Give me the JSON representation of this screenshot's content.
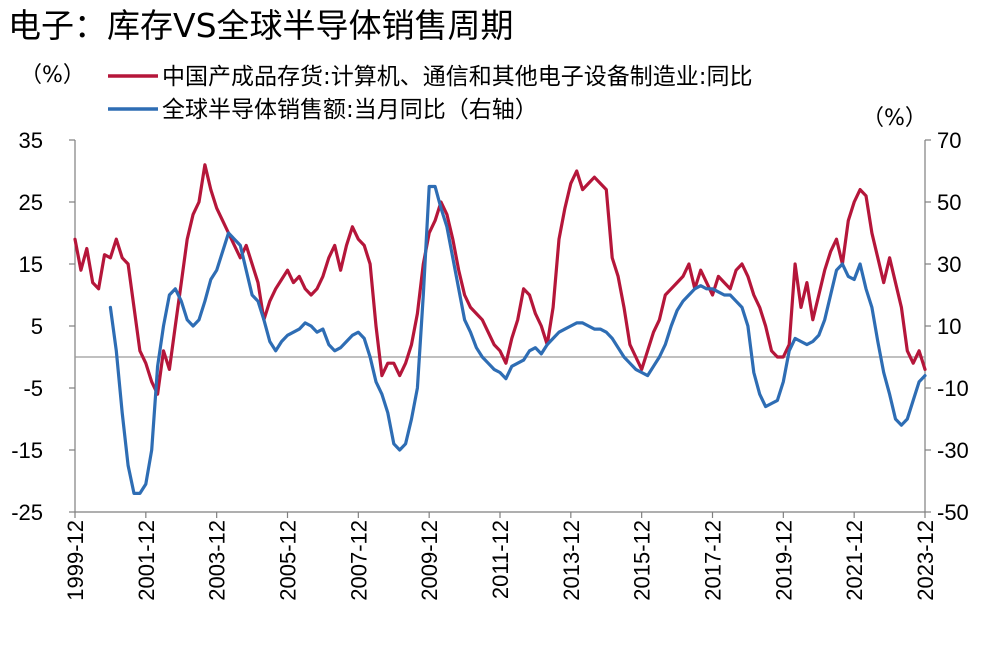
{
  "chart_data": {
    "type": "line",
    "title": "电子：库存VS全球半导体销售周期",
    "left_unit": "（%）",
    "right_unit": "（%）",
    "y_left": {
      "ylim": [
        -25,
        35
      ],
      "ticks": [
        35,
        25,
        15,
        5,
        -5,
        -15,
        -25
      ]
    },
    "y_right": {
      "ylim": [
        -50,
        70
      ],
      "ticks": [
        70,
        50,
        30,
        10,
        -10,
        -30,
        -50
      ]
    },
    "x_ticks": [
      "1999-12",
      "2001-12",
      "2003-12",
      "2005-12",
      "2007-12",
      "2009-12",
      "2011-12",
      "2013-12",
      "2015-12",
      "2017-12",
      "2019-12",
      "2021-12",
      "2023-12"
    ],
    "x_range": [
      "1999-12",
      "2023-12"
    ],
    "legend_placement": "top-left",
    "reference_line_right_axis": 0,
    "series": [
      {
        "name": "中国产成品存货:计算机、通信和其他电子设备制造业:同比",
        "axis": "left",
        "color": "#b5163a",
        "points": [
          [
            "1999-12",
            19
          ],
          [
            "2000-02",
            14
          ],
          [
            "2000-04",
            17.5
          ],
          [
            "2000-06",
            12
          ],
          [
            "2000-08",
            11
          ],
          [
            "2000-10",
            16.5
          ],
          [
            "2000-12",
            16
          ],
          [
            "2001-02",
            19
          ],
          [
            "2001-04",
            16
          ],
          [
            "2001-06",
            15
          ],
          [
            "2001-08",
            8
          ],
          [
            "2001-10",
            1
          ],
          [
            "2001-12",
            -1
          ],
          [
            "2002-02",
            -4
          ],
          [
            "2002-04",
            -6
          ],
          [
            "2002-06",
            1
          ],
          [
            "2002-08",
            -2
          ],
          [
            "2002-10",
            5
          ],
          [
            "2002-12",
            12
          ],
          [
            "2003-02",
            19
          ],
          [
            "2003-04",
            23
          ],
          [
            "2003-06",
            25
          ],
          [
            "2003-08",
            31
          ],
          [
            "2003-10",
            27
          ],
          [
            "2003-12",
            24
          ],
          [
            "2004-02",
            22
          ],
          [
            "2004-04",
            20
          ],
          [
            "2004-06",
            18
          ],
          [
            "2004-08",
            16
          ],
          [
            "2004-10",
            18
          ],
          [
            "2004-12",
            15
          ],
          [
            "2005-02",
            12
          ],
          [
            "2005-04",
            6
          ],
          [
            "2005-06",
            9
          ],
          [
            "2005-08",
            11
          ],
          [
            "2005-10",
            12.5
          ],
          [
            "2005-12",
            14
          ],
          [
            "2006-02",
            12
          ],
          [
            "2006-04",
            13
          ],
          [
            "2006-06",
            11
          ],
          [
            "2006-08",
            10
          ],
          [
            "2006-10",
            11
          ],
          [
            "2006-12",
            13
          ],
          [
            "2007-02",
            16
          ],
          [
            "2007-04",
            18
          ],
          [
            "2007-06",
            14
          ],
          [
            "2007-08",
            18
          ],
          [
            "2007-10",
            21
          ],
          [
            "2007-12",
            19
          ],
          [
            "2008-02",
            18
          ],
          [
            "2008-04",
            15
          ],
          [
            "2008-06",
            5
          ],
          [
            "2008-08",
            -3
          ],
          [
            "2008-10",
            -1
          ],
          [
            "2008-12",
            -1
          ],
          [
            "2009-02",
            -3
          ],
          [
            "2009-04",
            -1
          ],
          [
            "2009-06",
            2
          ],
          [
            "2009-08",
            7
          ],
          [
            "2009-10",
            15
          ],
          [
            "2009-12",
            20
          ],
          [
            "2010-02",
            22
          ],
          [
            "2010-04",
            25
          ],
          [
            "2010-06",
            23
          ],
          [
            "2010-08",
            19
          ],
          [
            "2010-10",
            14
          ],
          [
            "2010-12",
            10
          ],
          [
            "2011-02",
            8
          ],
          [
            "2011-04",
            7
          ],
          [
            "2011-06",
            6
          ],
          [
            "2011-08",
            4
          ],
          [
            "2011-10",
            2
          ],
          [
            "2011-12",
            1
          ],
          [
            "2012-02",
            -1
          ],
          [
            "2012-04",
            3
          ],
          [
            "2012-06",
            6
          ],
          [
            "2012-08",
            11
          ],
          [
            "2012-10",
            10
          ],
          [
            "2012-12",
            7
          ],
          [
            "2013-02",
            5
          ],
          [
            "2013-04",
            2
          ],
          [
            "2013-06",
            8
          ],
          [
            "2013-08",
            19
          ],
          [
            "2013-10",
            24
          ],
          [
            "2013-12",
            28
          ],
          [
            "2014-02",
            30
          ],
          [
            "2014-04",
            27
          ],
          [
            "2014-06",
            28
          ],
          [
            "2014-08",
            29
          ],
          [
            "2014-10",
            28
          ],
          [
            "2014-12",
            27
          ],
          [
            "2015-02",
            16
          ],
          [
            "2015-04",
            13
          ],
          [
            "2015-06",
            8
          ],
          [
            "2015-08",
            2
          ],
          [
            "2015-10",
            0
          ],
          [
            "2015-12",
            -2
          ],
          [
            "2016-02",
            1
          ],
          [
            "2016-04",
            4
          ],
          [
            "2016-06",
            6
          ],
          [
            "2016-08",
            10
          ],
          [
            "2016-10",
            11
          ],
          [
            "2016-12",
            12
          ],
          [
            "2017-02",
            13
          ],
          [
            "2017-04",
            15
          ],
          [
            "2017-06",
            11
          ],
          [
            "2017-08",
            14
          ],
          [
            "2017-10",
            12
          ],
          [
            "2017-12",
            10
          ],
          [
            "2018-02",
            13
          ],
          [
            "2018-04",
            12
          ],
          [
            "2018-06",
            11
          ],
          [
            "2018-08",
            14
          ],
          [
            "2018-10",
            15
          ],
          [
            "2018-12",
            13
          ],
          [
            "2019-02",
            10
          ],
          [
            "2019-04",
            8
          ],
          [
            "2019-06",
            5
          ],
          [
            "2019-08",
            1
          ],
          [
            "2019-10",
            0
          ],
          [
            "2019-12",
            0
          ],
          [
            "2020-02",
            2
          ],
          [
            "2020-04",
            15
          ],
          [
            "2020-06",
            8
          ],
          [
            "2020-08",
            12
          ],
          [
            "2020-10",
            6
          ],
          [
            "2020-12",
            10
          ],
          [
            "2021-02",
            14
          ],
          [
            "2021-04",
            17
          ],
          [
            "2021-06",
            19
          ],
          [
            "2021-08",
            15
          ],
          [
            "2021-10",
            22
          ],
          [
            "2021-12",
            25
          ],
          [
            "2022-02",
            27
          ],
          [
            "2022-04",
            26
          ],
          [
            "2022-06",
            20
          ],
          [
            "2022-08",
            16
          ],
          [
            "2022-10",
            12
          ],
          [
            "2022-12",
            16
          ],
          [
            "2023-02",
            12
          ],
          [
            "2023-04",
            8
          ],
          [
            "2023-06",
            1
          ],
          [
            "2023-08",
            -1
          ],
          [
            "2023-10",
            1
          ],
          [
            "2023-12",
            -2
          ]
        ]
      },
      {
        "name": "全球半导体销售额:当月同比（右轴）",
        "axis": "right",
        "color": "#2e6db4",
        "points": [
          [
            "2000-12",
            16
          ],
          [
            "2001-02",
            2
          ],
          [
            "2001-04",
            -18
          ],
          [
            "2001-06",
            -35
          ],
          [
            "2001-08",
            -44
          ],
          [
            "2001-10",
            -44
          ],
          [
            "2001-12",
            -41
          ],
          [
            "2002-02",
            -30
          ],
          [
            "2002-04",
            -3
          ],
          [
            "2002-06",
            10
          ],
          [
            "2002-08",
            20
          ],
          [
            "2002-10",
            22
          ],
          [
            "2002-12",
            18
          ],
          [
            "2003-02",
            12
          ],
          [
            "2003-04",
            10
          ],
          [
            "2003-06",
            12
          ],
          [
            "2003-08",
            18
          ],
          [
            "2003-10",
            25
          ],
          [
            "2003-12",
            28
          ],
          [
            "2004-02",
            34
          ],
          [
            "2004-04",
            40
          ],
          [
            "2004-06",
            38
          ],
          [
            "2004-08",
            36
          ],
          [
            "2004-10",
            28
          ],
          [
            "2004-12",
            20
          ],
          [
            "2005-02",
            18
          ],
          [
            "2005-04",
            12
          ],
          [
            "2005-06",
            5
          ],
          [
            "2005-08",
            2
          ],
          [
            "2005-10",
            5
          ],
          [
            "2005-12",
            7
          ],
          [
            "2006-02",
            8
          ],
          [
            "2006-04",
            9
          ],
          [
            "2006-06",
            11
          ],
          [
            "2006-08",
            10
          ],
          [
            "2006-10",
            8
          ],
          [
            "2006-12",
            9
          ],
          [
            "2007-02",
            4
          ],
          [
            "2007-04",
            2
          ],
          [
            "2007-06",
            3
          ],
          [
            "2007-08",
            5
          ],
          [
            "2007-10",
            7
          ],
          [
            "2007-12",
            8
          ],
          [
            "2008-02",
            6
          ],
          [
            "2008-04",
            0
          ],
          [
            "2008-06",
            -8
          ],
          [
            "2008-08",
            -12
          ],
          [
            "2008-10",
            -18
          ],
          [
            "2008-12",
            -28
          ],
          [
            "2009-02",
            -30
          ],
          [
            "2009-04",
            -28
          ],
          [
            "2009-06",
            -20
          ],
          [
            "2009-08",
            -10
          ],
          [
            "2009-10",
            20
          ],
          [
            "2009-12",
            55
          ],
          [
            "2010-02",
            55
          ],
          [
            "2010-04",
            48
          ],
          [
            "2010-06",
            42
          ],
          [
            "2010-08",
            32
          ],
          [
            "2010-10",
            22
          ],
          [
            "2010-12",
            12
          ],
          [
            "2011-02",
            8
          ],
          [
            "2011-04",
            3
          ],
          [
            "2011-06",
            0
          ],
          [
            "2011-08",
            -2
          ],
          [
            "2011-10",
            -4
          ],
          [
            "2011-12",
            -5
          ],
          [
            "2012-02",
            -7
          ],
          [
            "2012-04",
            -3
          ],
          [
            "2012-06",
            -2
          ],
          [
            "2012-08",
            -1
          ],
          [
            "2012-10",
            2
          ],
          [
            "2012-12",
            3
          ],
          [
            "2013-02",
            1
          ],
          [
            "2013-04",
            4
          ],
          [
            "2013-06",
            6
          ],
          [
            "2013-08",
            8
          ],
          [
            "2013-10",
            9
          ],
          [
            "2013-12",
            10
          ],
          [
            "2014-02",
            11
          ],
          [
            "2014-04",
            11
          ],
          [
            "2014-06",
            10
          ],
          [
            "2014-08",
            9
          ],
          [
            "2014-10",
            9
          ],
          [
            "2014-12",
            8
          ],
          [
            "2015-02",
            6
          ],
          [
            "2015-04",
            3
          ],
          [
            "2015-06",
            0
          ],
          [
            "2015-08",
            -2
          ],
          [
            "2015-10",
            -4
          ],
          [
            "2015-12",
            -5
          ],
          [
            "2016-02",
            -6
          ],
          [
            "2016-04",
            -3
          ],
          [
            "2016-06",
            0
          ],
          [
            "2016-08",
            4
          ],
          [
            "2016-10",
            10
          ],
          [
            "2016-12",
            15
          ],
          [
            "2017-02",
            18
          ],
          [
            "2017-04",
            20
          ],
          [
            "2017-06",
            22
          ],
          [
            "2017-08",
            23
          ],
          [
            "2017-10",
            22
          ],
          [
            "2017-12",
            22
          ],
          [
            "2018-02",
            21
          ],
          [
            "2018-04",
            20
          ],
          [
            "2018-06",
            20
          ],
          [
            "2018-08",
            18
          ],
          [
            "2018-10",
            16
          ],
          [
            "2018-12",
            10
          ],
          [
            "2019-02",
            -5
          ],
          [
            "2019-04",
            -12
          ],
          [
            "2019-06",
            -16
          ],
          [
            "2019-08",
            -15
          ],
          [
            "2019-10",
            -14
          ],
          [
            "2019-12",
            -8
          ],
          [
            "2020-02",
            2
          ],
          [
            "2020-04",
            6
          ],
          [
            "2020-06",
            5
          ],
          [
            "2020-08",
            4
          ],
          [
            "2020-10",
            5
          ],
          [
            "2020-12",
            7
          ],
          [
            "2021-02",
            12
          ],
          [
            "2021-04",
            20
          ],
          [
            "2021-06",
            28
          ],
          [
            "2021-08",
            30
          ],
          [
            "2021-10",
            26
          ],
          [
            "2021-12",
            25
          ],
          [
            "2022-02",
            30
          ],
          [
            "2022-04",
            22
          ],
          [
            "2022-06",
            16
          ],
          [
            "2022-08",
            5
          ],
          [
            "2022-10",
            -5
          ],
          [
            "2022-12",
            -12
          ],
          [
            "2023-02",
            -20
          ],
          [
            "2023-04",
            -22
          ],
          [
            "2023-06",
            -20
          ],
          [
            "2023-08",
            -14
          ],
          [
            "2023-10",
            -8
          ],
          [
            "2023-12",
            -6
          ]
        ]
      }
    ]
  }
}
